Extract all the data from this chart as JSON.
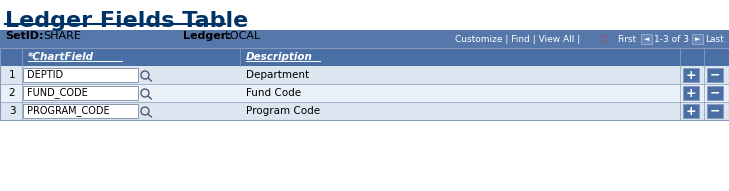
{
  "title": "Ledger Fields Table",
  "title_color": "#003366",
  "title_fontsize": 16,
  "setid_label": "SetID:",
  "setid_value": "SHARE",
  "ledger_label": "Ledger:",
  "ledger_value": "LOCAL",
  "toolbar_text": "Customize | Find | View All |",
  "col_headers": [
    "*ChartField",
    "Description"
  ],
  "rows": [
    {
      "num": "1",
      "field": "DEPTID",
      "desc": "Department"
    },
    {
      "num": "2",
      "field": "FUND_CODE",
      "desc": "Fund Code"
    },
    {
      "num": "3",
      "field": "PROGRAM_CODE",
      "desc": "Program Code"
    }
  ],
  "header_bg": "#4a6fa5",
  "toolbar_bg": "#5577aa",
  "row_bg_odd": "#dce6f1",
  "row_bg_even": "#eaf0f8",
  "grid_color": "#8899bb",
  "text_color_dark": "#000000",
  "input_bg": "#ffffff",
  "plus_btn_bg": "#4a6fa5",
  "fig_width": 7.29,
  "fig_height": 1.91
}
